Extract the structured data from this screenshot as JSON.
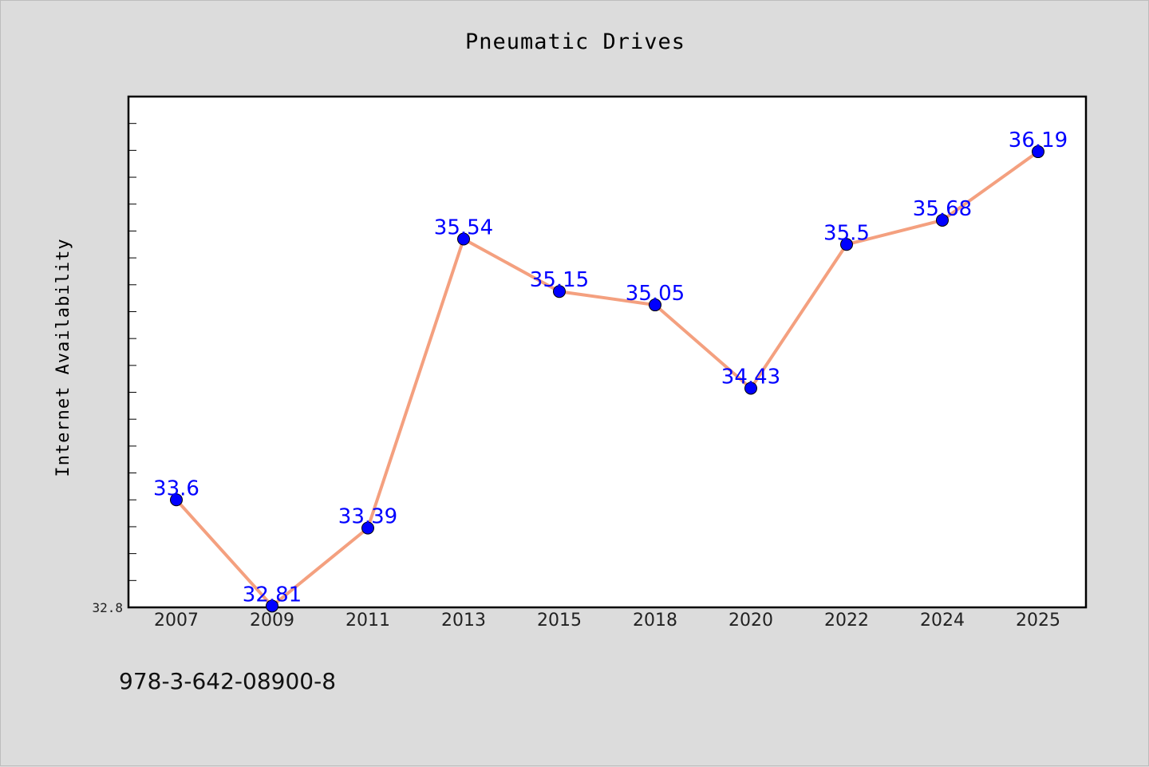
{
  "chart_data": {
    "type": "line",
    "title": "Pneumatic Drives",
    "xlabel": "",
    "ylabel": "Internet Availability",
    "categories": [
      "2007",
      "2009",
      "2011",
      "2013",
      "2015",
      "2018",
      "2020",
      "2022",
      "2024",
      "2025"
    ],
    "series": [
      {
        "values": [
          33.6,
          32.81,
          33.39,
          35.54,
          35.15,
          35.05,
          34.43,
          35.5,
          35.68,
          36.19
        ],
        "data_labels": [
          "33.6",
          "32.81",
          "33.39",
          "35.54",
          "35.15",
          "35.05",
          "34.43",
          "35.5",
          "35.68",
          "36.19"
        ]
      }
    ],
    "ylim": [
      32.8,
      36.6
    ],
    "y_tick_labels": [
      "32.8"
    ],
    "grid": false,
    "legend": "none",
    "colors": {
      "line": "#f4a07f",
      "marker": "#0000ff",
      "data_label": "#0000ff",
      "plot_background": "#ffffff",
      "figure_background": "#dcdcdc"
    }
  },
  "footer": {
    "isbn": "978-3-642-08900-8"
  }
}
